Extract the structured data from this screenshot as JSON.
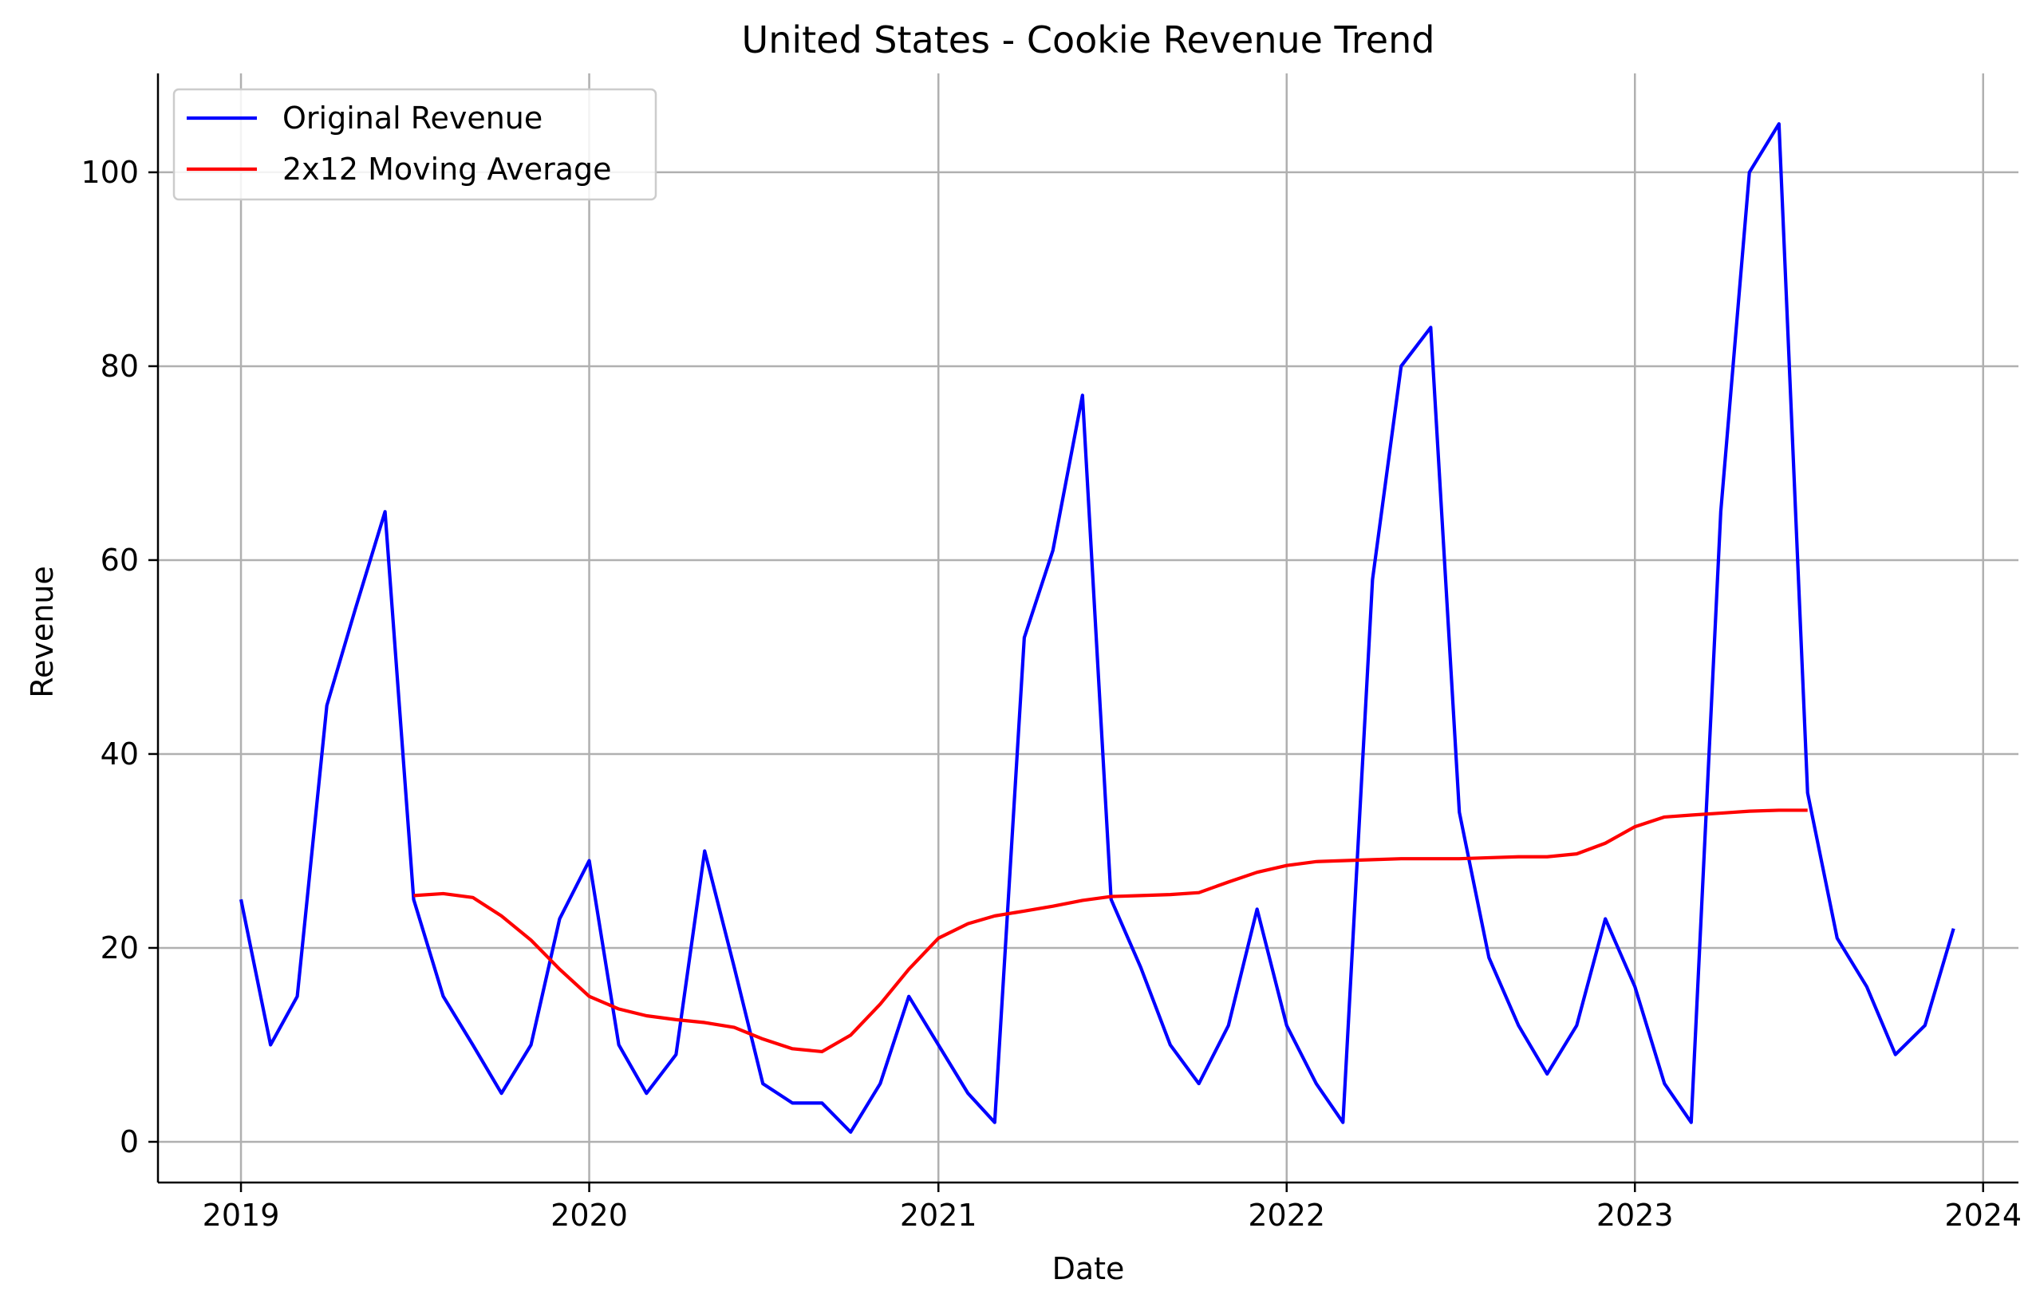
{
  "chart_data": {
    "type": "line",
    "title": "United States - Cookie Revenue Trend",
    "xlabel": "Date",
    "ylabel": "Revenue",
    "x_axis_kind": "date",
    "xlim": [
      "2018-10-06",
      "2024-02-07"
    ],
    "ylim": [
      -4.2,
      110.2
    ],
    "x_ticks": [
      "2019",
      "2020",
      "2021",
      "2022",
      "2023",
      "2024"
    ],
    "y_ticks": [
      0,
      20,
      40,
      60,
      80,
      100
    ],
    "grid": true,
    "legend_position": "top-left",
    "x": [
      "2019-01",
      "2019-02",
      "2019-03",
      "2019-04",
      "2019-05",
      "2019-06",
      "2019-07",
      "2019-08",
      "2019-09",
      "2019-10",
      "2019-11",
      "2019-12",
      "2020-01",
      "2020-02",
      "2020-03",
      "2020-04",
      "2020-05",
      "2020-06",
      "2020-07",
      "2020-08",
      "2020-09",
      "2020-10",
      "2020-11",
      "2020-12",
      "2021-01",
      "2021-02",
      "2021-03",
      "2021-04",
      "2021-05",
      "2021-06",
      "2021-07",
      "2021-08",
      "2021-09",
      "2021-10",
      "2021-11",
      "2021-12",
      "2022-01",
      "2022-02",
      "2022-03",
      "2022-04",
      "2022-05",
      "2022-06",
      "2022-07",
      "2022-08",
      "2022-09",
      "2022-10",
      "2022-11",
      "2022-12",
      "2023-01",
      "2023-02",
      "2023-03",
      "2023-04",
      "2023-05",
      "2023-06",
      "2023-07",
      "2023-08",
      "2023-09",
      "2023-10",
      "2023-11",
      "2023-12"
    ],
    "series": [
      {
        "name": "Original Revenue",
        "color": "#0000ff",
        "values": [
          25,
          10,
          15,
          45,
          55,
          65,
          25,
          15,
          10,
          5,
          10,
          23,
          29,
          10,
          5,
          9,
          30,
          18,
          6,
          4,
          4,
          1,
          6,
          15,
          10,
          5,
          2,
          52,
          61,
          77,
          25,
          18,
          10,
          6,
          12,
          24,
          12,
          6,
          2,
          58,
          80,
          84,
          34,
          19,
          12,
          7,
          12,
          23,
          16,
          6,
          2,
          65,
          100,
          105,
          36,
          21,
          16,
          9,
          12,
          22
        ]
      },
      {
        "name": "2x12 Moving Average",
        "color": "#ff0000",
        "values": [
          null,
          null,
          null,
          null,
          null,
          null,
          25.4,
          25.6,
          25.2,
          23.3,
          20.8,
          17.8,
          15.0,
          13.7,
          13.0,
          12.6,
          12.3,
          11.8,
          10.6,
          9.6,
          9.3,
          11.0,
          14.2,
          17.8,
          21.0,
          22.5,
          23.3,
          23.8,
          24.3,
          24.9,
          25.3,
          25.4,
          25.5,
          25.7,
          26.8,
          27.8,
          28.5,
          28.9,
          29.0,
          29.1,
          29.2,
          29.2,
          29.2,
          29.3,
          29.4,
          29.4,
          29.7,
          30.8,
          32.5,
          33.5,
          33.7,
          33.9,
          34.1,
          34.2,
          34.2,
          null,
          null,
          null,
          null,
          null
        ]
      }
    ]
  }
}
